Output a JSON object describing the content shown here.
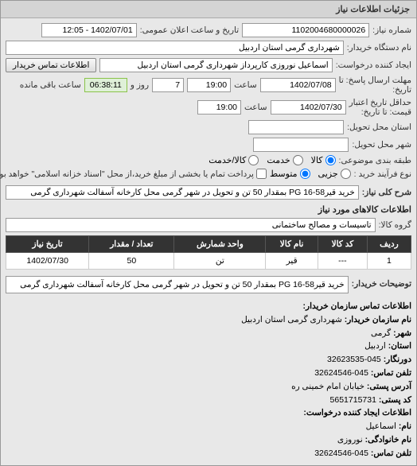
{
  "panel_title": "جزئیات اطلاعات نیاز",
  "need_number_label": "شماره نیاز:",
  "need_number": "1102004680000026",
  "announce_label": "تاریخ و ساعت اعلان عمومی:",
  "announce_value": "1402/07/01 - 12:05",
  "buyer_org_label": "نام دستگاه خریدار:",
  "buyer_org": "شهرداری گرمی استان اردبیل",
  "requester_label": "ایجاد کننده درخواست:",
  "requester": "اسماعیل نوروزی کارپرداز شهرداری گرمی استان اردبیل",
  "contact_btn": "اطلاعات تماس خریدار",
  "deadline_label1": "مهلت ارسال پاسخ: تا",
  "deadline_label2": "تاریخ:",
  "deadline_date": "1402/07/08",
  "deadline_time_label": "ساعت",
  "deadline_time": "19:00",
  "days_remain": "7",
  "days_remain_label": "روز و",
  "time_remain": "06:38:11",
  "time_remain_label": "ساعت باقی مانده",
  "validity_label1": "حداقل تاریخ اعتبار",
  "validity_label2": "قیمت: تا تاریخ:",
  "validity_date": "1402/07/30",
  "validity_time_label": "ساعت",
  "validity_time": "19:00",
  "delivery_province_label": "استان محل تحویل:",
  "delivery_province": "",
  "delivery_city_label": "شهر محل تحویل:",
  "delivery_city": "",
  "budget_label": "طبقه بندی موضوعی:",
  "budget_opt_all": "کالا",
  "budget_opt_service": "خدمت",
  "budget_opt_both": "کالا/خدمت",
  "purchase_type_label": "نوع فرآیند خرید :",
  "purchase_opt_partial": "جزیی",
  "purchase_opt_medium": "متوسط",
  "payment_note": "پرداخت تمام یا بخشی از مبلغ خرید،از محل \"اسناد خزانه اسلامی\" خواهد بود.",
  "need_title_label": "شرح کلی نیاز:",
  "need_title": "خرید قیرPG 16-58 بمقدار 50 تن و تحویل در شهر گرمی محل کارخانه آسفالت شهرداری گرمی",
  "goods_section": "اطلاعات کالاهای مورد نیاز",
  "goods_group_label": "گروه کالا:",
  "goods_group": "تاسیسات و مصالح ساختمانی",
  "table": {
    "headers": [
      "ردیف",
      "کد کالا",
      "نام کالا",
      "واحد شمارش",
      "تعداد / مقدار",
      "تاریخ نیاز"
    ],
    "rows": [
      [
        "1",
        "---",
        "قیر",
        "تن",
        "50",
        "1402/07/30"
      ]
    ]
  },
  "desc_label": "توضیحات خریدار:",
  "desc_text": "خرید قیرPG 16-58 بمقدار 50 تن و تحویل در شهر گرمی محل کارخانه آسفالت شهرداری گرمی",
  "contact_section_title": "اطلاعات تماس سازمان خریدار:",
  "org_name_label": "نام سازمان خریدار:",
  "org_name": "شهرداری گرمی استان اردبیل",
  "city_label": "شهر:",
  "city": "گرمی",
  "province_label": "استان:",
  "province": "اردبیل",
  "fax_label": "دورنگار:",
  "fax": "045-32623535",
  "phone_label": "تلفن تماس:",
  "phone": "045-32624546",
  "address_label": "آدرس پستی:",
  "address": "خیابان امام خمینی ره",
  "postal_label": "کد پستی:",
  "postal": "5651715731",
  "requester_section_title": "اطلاعات ایجاد کننده درخواست:",
  "first_name_label": "نام:",
  "first_name": "اسماعیل",
  "last_name_label": "نام خانوادگی:",
  "last_name": "نوروزی",
  "req_phone_label": "تلفن تماس:",
  "req_phone": "045-32624546"
}
